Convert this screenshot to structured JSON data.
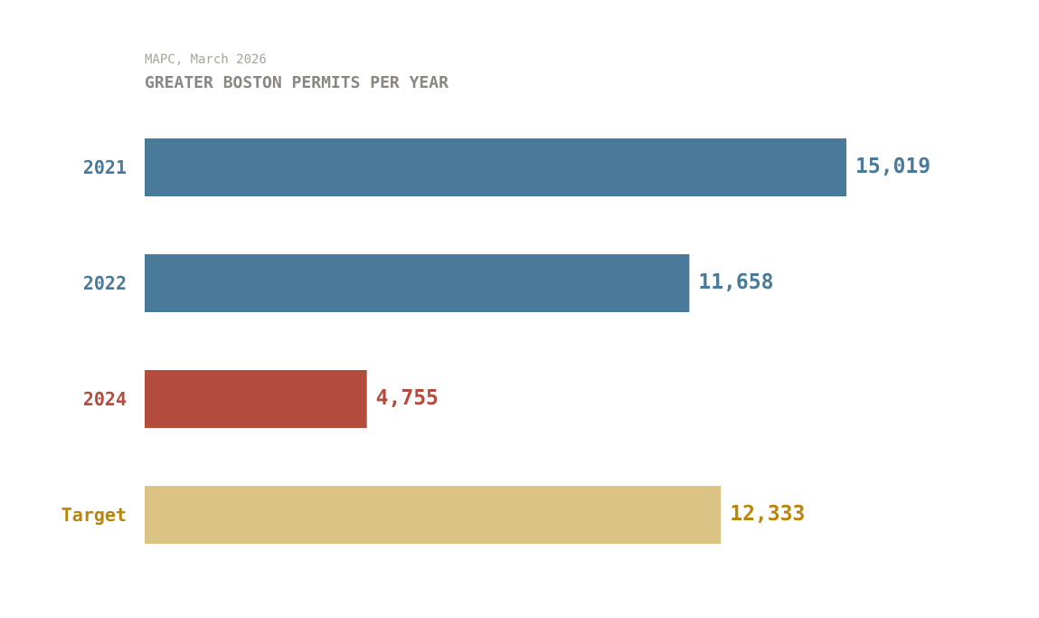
{
  "chart_data": {
    "type": "bar",
    "orientation": "horizontal",
    "source": "MAPC, March 2026",
    "title": "GREATER BOSTON PERMITS PER YEAR",
    "categories": [
      "2021",
      "2022",
      "2024",
      "Target"
    ],
    "values": [
      15019,
      11658,
      4755,
      12333
    ],
    "value_labels": [
      "15,019",
      "11,658",
      "4,755",
      "12,333"
    ],
    "bar_colors": [
      "#4a7a9a",
      "#4a7a9a",
      "#b34c3d",
      "#dbc385"
    ],
    "label_colors": [
      "#4a7a9a",
      "#4a7a9a",
      "#b34c3d",
      "#b8860b"
    ],
    "xlim": [
      0,
      15019
    ],
    "grid": false,
    "legend": "none"
  }
}
